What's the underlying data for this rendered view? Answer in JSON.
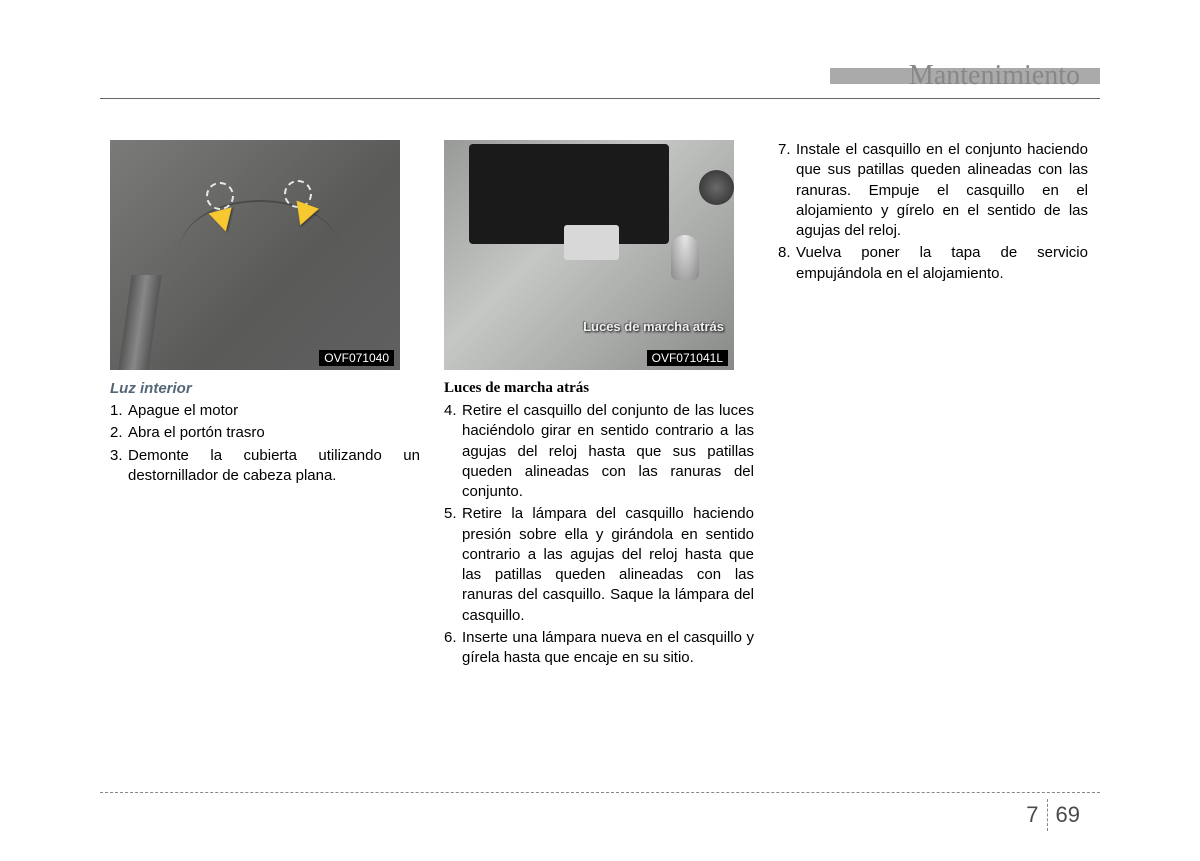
{
  "header": {
    "title": "Mantenimiento"
  },
  "col1": {
    "figure_code": "OVF071040",
    "title": "Luz interior",
    "items": [
      {
        "num": "1.",
        "text": "Apague el motor"
      },
      {
        "num": "2.",
        "text": "Abra el portón trasro"
      },
      {
        "num": "3.",
        "text": "Demonte la cubierta utilizando un destornillador de cabeza plana."
      }
    ]
  },
  "col2": {
    "figure_code": "OVF071041L",
    "figure_label": "Luces de marcha atrás",
    "title": "Luces de marcha atrás",
    "items": [
      {
        "num": "4.",
        "text": "Retire el casquillo del conjunto de las luces haciéndolo girar en sentido contrario a las agujas del reloj hasta que sus patillas queden alineadas con las ranuras del conjunto."
      },
      {
        "num": "5.",
        "text": "Retire la lámpara del casquillo haciendo presión sobre ella y girándola en sentido contrario a las agujas del reloj hasta que las patillas queden alineadas con las ranuras del casquillo. Saque la lámpara del casquillo."
      },
      {
        "num": "6.",
        "text": "Inserte una lámpara nueva en el casquillo y gírela hasta que encaje en su sitio."
      }
    ]
  },
  "col3": {
    "items": [
      {
        "num": "7.",
        "text": "Instale el casquillo en el conjunto haciendo que sus patillas queden alineadas con las ranuras. Empuje el casquillo en el alojamiento y gírelo en el sentido de las agujas del reloj."
      },
      {
        "num": "8.",
        "text": "Vuelva poner la tapa de servicio empujándola en el alojamiento."
      }
    ]
  },
  "footer": {
    "chapter": "7",
    "page": "69"
  }
}
